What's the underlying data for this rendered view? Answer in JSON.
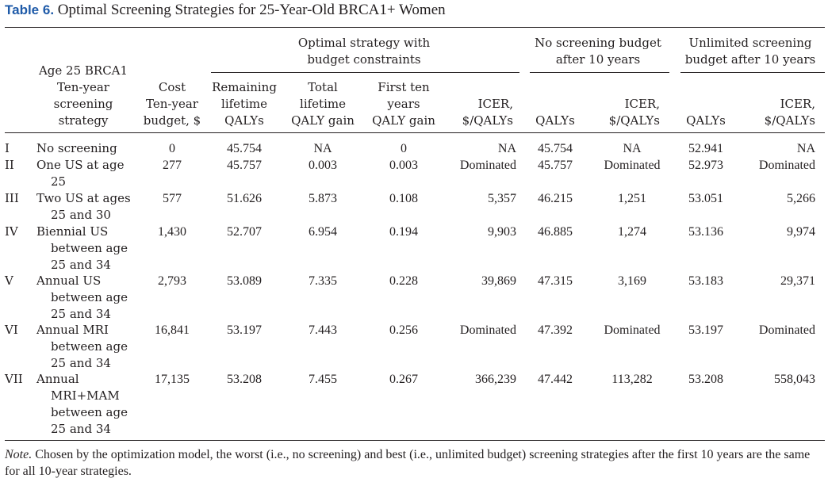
{
  "caption": {
    "label": "Table 6.",
    "title": "Optimal Screening Strategies for 25-Year-Old BRCA1+ Women"
  },
  "header": {
    "group_optimal": [
      "Optimal strategy with",
      "budget constraints"
    ],
    "group_noscreen": [
      "No screening budget",
      "after 10 years"
    ],
    "group_unlimited": [
      "Unlimited screening",
      "budget after 10 years"
    ],
    "strategy": [
      "Age 25 BRCA1",
      "Ten-year",
      "screening",
      "strategy"
    ],
    "cost": [
      "Cost",
      "Ten-year",
      "budget, $"
    ],
    "remaining": [
      "Remaining",
      "lifetime",
      "QALYs"
    ],
    "total": [
      "Total",
      "lifetime",
      "QALY gain"
    ],
    "first": [
      "First ten",
      "years",
      "QALY gain"
    ],
    "icer1": [
      "ICER,",
      "$/QALYs"
    ],
    "qalys2": "QALYs",
    "icer2": [
      "ICER,",
      "$/QALYs"
    ],
    "qalys3": "QALYs",
    "icer3": [
      "ICER,",
      "$/QALYs"
    ]
  },
  "rows": [
    {
      "id": "I",
      "strategy": [
        "No screening"
      ],
      "cost": "0",
      "remaining": "45.754",
      "total": "NA",
      "first": "0",
      "icer1": "NA",
      "qalys2": "45.754",
      "icer2": "NA",
      "qalys3": "52.941",
      "icer3": "NA"
    },
    {
      "id": "II",
      "strategy": [
        "One US at age",
        "25"
      ],
      "cost": "277",
      "remaining": "45.757",
      "total": "0.003",
      "first": "0.003",
      "icer1": "Dominated",
      "qalys2": "45.757",
      "icer2": "Dominated",
      "qalys3": "52.973",
      "icer3": "Dominated"
    },
    {
      "id": "III",
      "strategy": [
        "Two US at ages",
        "25 and 30"
      ],
      "cost": "577",
      "remaining": "51.626",
      "total": "5.873",
      "first": "0.108",
      "icer1": "5,357",
      "qalys2": "46.215",
      "icer2": "1,251",
      "qalys3": "53.051",
      "icer3": "5,266"
    },
    {
      "id": "IV",
      "strategy": [
        "Biennial US",
        "between age",
        "25 and 34"
      ],
      "cost": "1,430",
      "remaining": "52.707",
      "total": "6.954",
      "first": "0.194",
      "icer1": "9,903",
      "qalys2": "46.885",
      "icer2": "1,274",
      "qalys3": "53.136",
      "icer3": "9,974"
    },
    {
      "id": "V",
      "strategy": [
        "Annual US",
        "between age",
        "25 and 34"
      ],
      "cost": "2,793",
      "remaining": "53.089",
      "total": "7.335",
      "first": "0.228",
      "icer1": "39,869",
      "qalys2": "47.315",
      "icer2": "3,169",
      "qalys3": "53.183",
      "icer3": "29,371"
    },
    {
      "id": "VI",
      "strategy": [
        "Annual MRI",
        "between age",
        "25 and 34"
      ],
      "cost": "16,841",
      "remaining": "53.197",
      "total": "7.443",
      "first": "0.256",
      "icer1": "Dominated",
      "qalys2": "47.392",
      "icer2": "Dominated",
      "qalys3": "53.197",
      "icer3": "Dominated"
    },
    {
      "id": "VII",
      "strategy": [
        "Annual",
        "MRI+MAM",
        "between age",
        "25 and 34"
      ],
      "cost": "17,135",
      "remaining": "53.208",
      "total": "7.455",
      "first": "0.267",
      "icer1": "366,239",
      "qalys2": "47.442",
      "icer2": "113,282",
      "qalys3": "53.208",
      "icer3": "558,043"
    }
  ],
  "note": {
    "label": "Note.",
    "text": "Chosen by the optimization model, the worst (i.e., no screening) and best (i.e., unlimited budget) screening strategies after the first 10 years are the same for all 10-year strategies."
  }
}
